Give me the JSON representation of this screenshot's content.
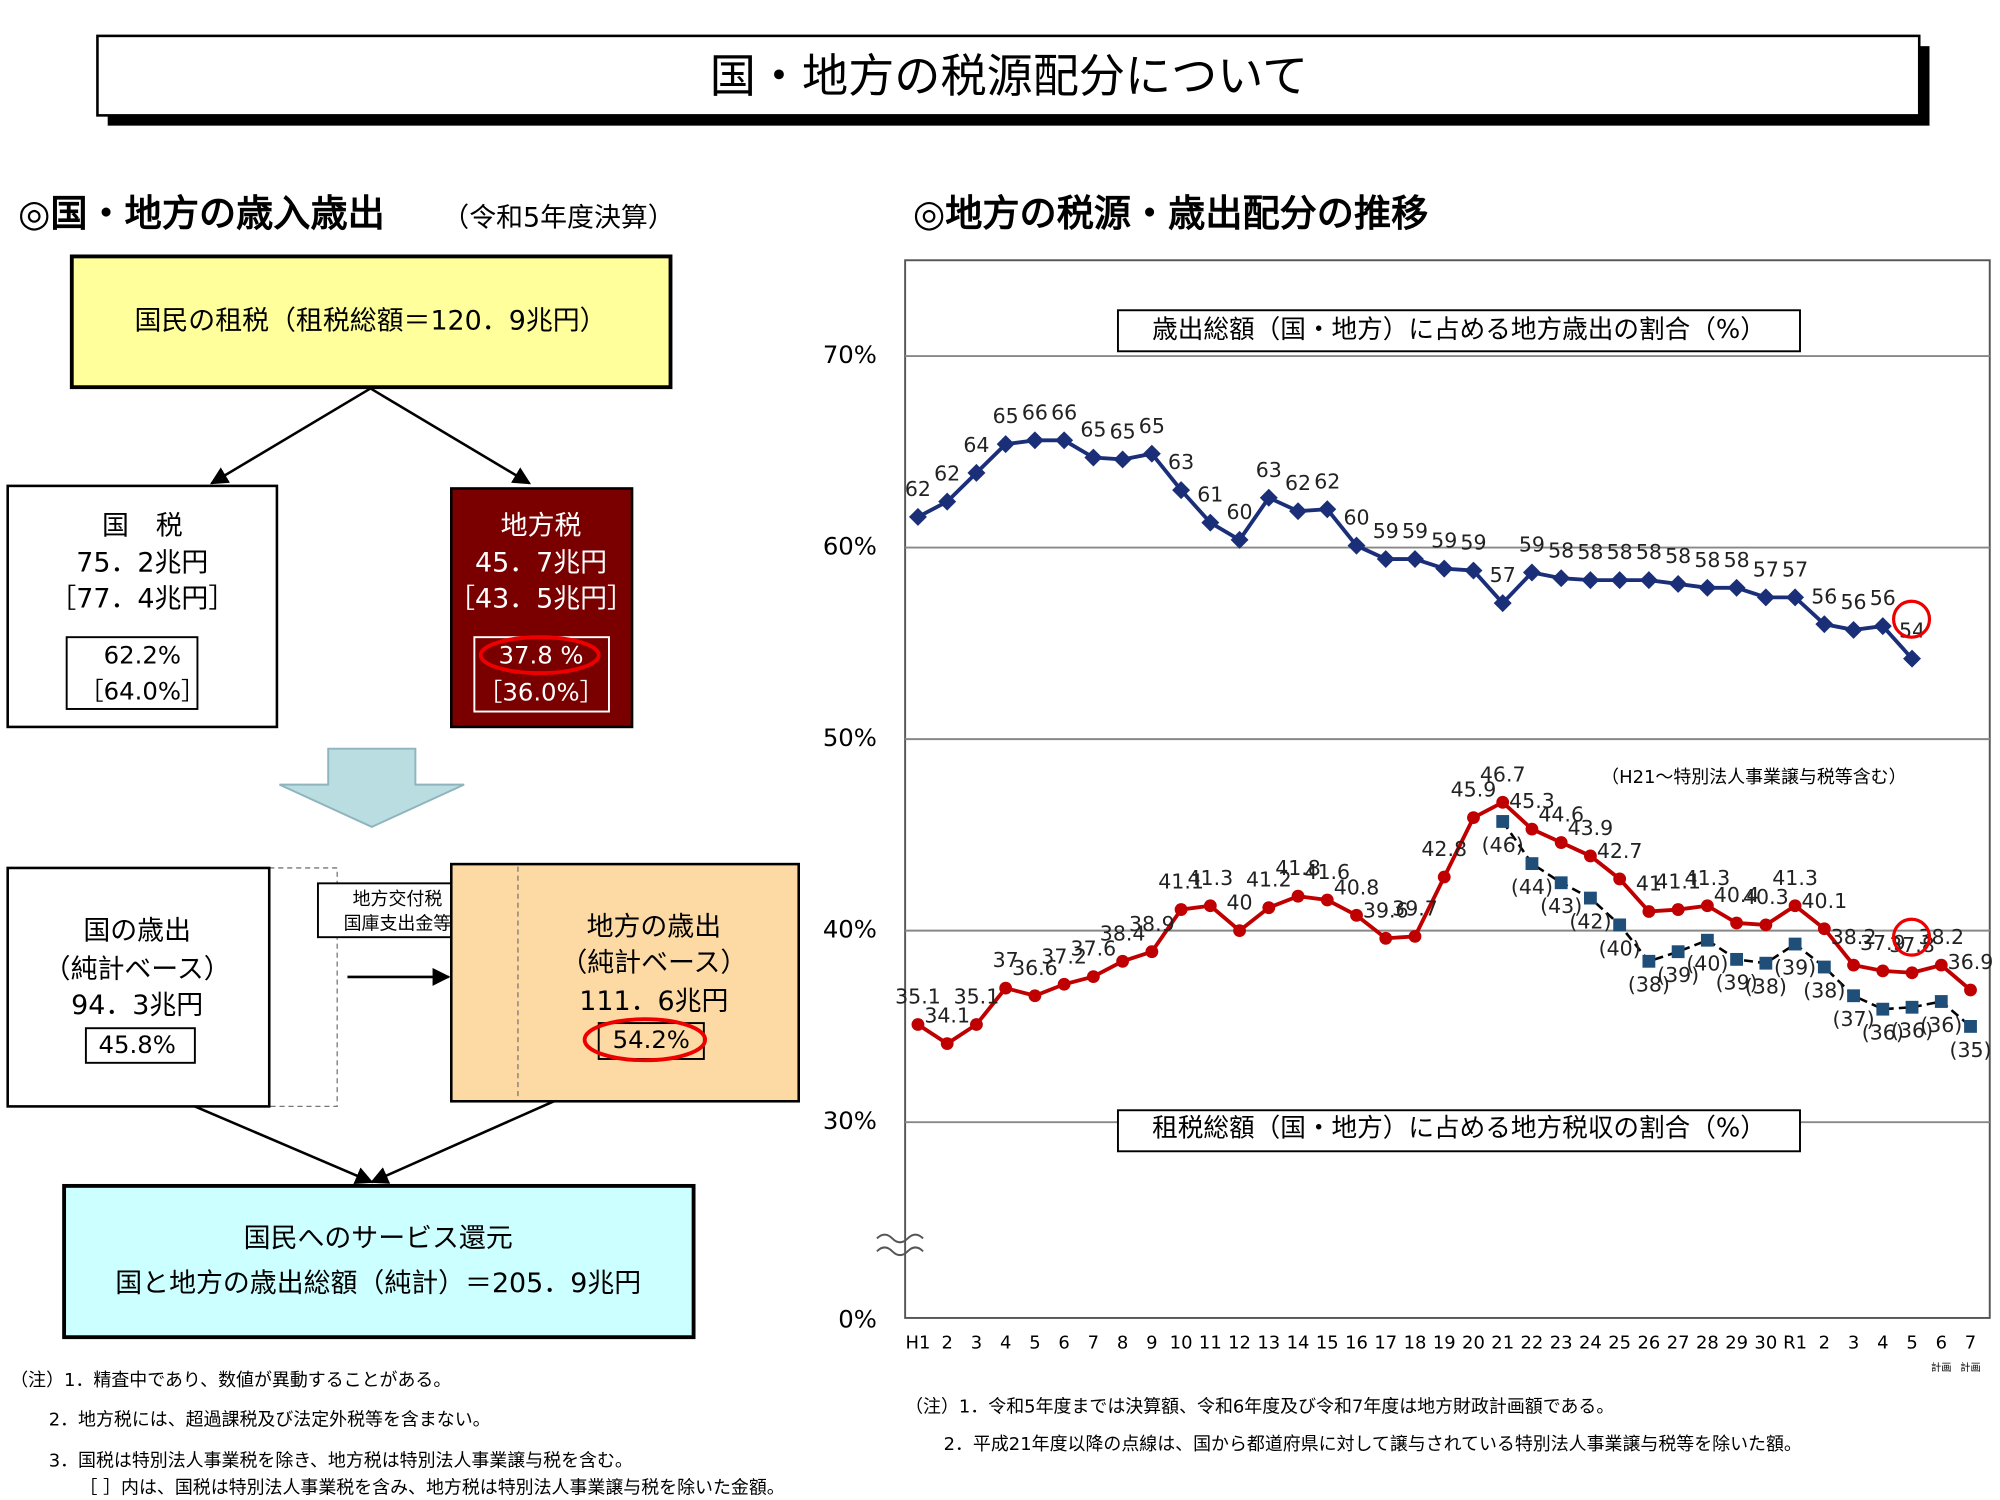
{
  "header": {
    "title": "国・地方の税源配分について"
  },
  "diagram": {
    "title": "◎国・地方の歳入歳出",
    "subtitle": "（令和5年度決算）",
    "total_tax": "国民の租税（租税総額＝120．9兆円）",
    "national_tax": {
      "label": "国　税",
      "amount": "75．2兆円",
      "amount_alt": "［77．4兆円］",
      "share": "62.2%",
      "share_alt": "［64.0%］"
    },
    "local_tax": {
      "label": "地方税",
      "amount": "45．7兆円",
      "amount_alt": "［43．5兆円］",
      "share": "37.8 %",
      "share_alt": "［36.0%］"
    },
    "national_expenditure": {
      "label": "国の歳出",
      "basis": "（純計ベース）",
      "amount": "94．3兆円",
      "share": "45.8%"
    },
    "transfer": [
      "地方交付税",
      "国庫支出金等"
    ],
    "local_expenditure": {
      "label": "地方の歳出",
      "basis": "（純計ベース）",
      "amount": "111．6兆円",
      "share": "54.2%"
    },
    "services": [
      "国民へのサービス還元",
      "国と地方の歳出総額（純計）＝205．9兆円"
    ],
    "notes": [
      "（注）1．精査中であり、数値が異動することがある。",
      "2．地方税には、超過課税及び法定外税等を含まない。",
      "3．国税は特別法人事業税を除き、地方税は特別法人事業譲与税を含む。",
      "［ ］内は、国税は特別法人事業税を含み、地方税は特別法人事業譲与税を除いた金額。"
    ]
  },
  "chart_data": {
    "type": "line",
    "title": "◎地方の税源・歳出配分の推移",
    "categories": [
      "H1",
      "2",
      "3",
      "4",
      "5",
      "6",
      "7",
      "8",
      "9",
      "10",
      "11",
      "12",
      "13",
      "14",
      "15",
      "16",
      "17",
      "18",
      "19",
      "20",
      "21",
      "22",
      "23",
      "24",
      "25",
      "26",
      "27",
      "28",
      "29",
      "30",
      "R1",
      "2",
      "3",
      "4",
      "5",
      "6",
      "7"
    ],
    "category_notes": [
      null,
      null,
      null,
      null,
      null,
      null,
      null,
      null,
      null,
      null,
      null,
      null,
      null,
      null,
      null,
      null,
      null,
      null,
      null,
      null,
      null,
      null,
      null,
      null,
      null,
      null,
      null,
      null,
      null,
      null,
      null,
      null,
      null,
      null,
      null,
      "計画",
      "計画"
    ],
    "ylim": [
      0,
      75
    ],
    "axis_break": [
      0,
      25
    ],
    "yticks": [
      {
        "value": 0,
        "label": "0%"
      },
      {
        "value": 30,
        "label": "30%"
      },
      {
        "value": 40,
        "label": "40%"
      },
      {
        "value": 50,
        "label": "50%"
      },
      {
        "value": 60,
        "label": "60%"
      },
      {
        "value": 70,
        "label": "70%"
      }
    ],
    "grid": true,
    "series": [
      {
        "color": "#1a2f78",
        "marker": "diamond",
        "values": [
          61.6,
          62.4,
          63.9,
          65.4,
          65.6,
          65.6,
          64.7,
          64.6,
          64.9,
          63.0,
          61.3,
          60.4,
          62.6,
          61.9,
          62.0,
          60.1,
          59.4,
          59.4,
          58.9,
          58.8,
          57.1,
          58.7,
          58.4,
          58.3,
          58.3,
          58.3,
          58.1,
          57.9,
          57.9,
          57.4,
          57.4,
          56.0,
          55.7,
          55.9,
          54.2,
          null,
          null
        ],
        "value_labels": [
          "62",
          "62",
          "64",
          "65",
          "66",
          "66",
          "65",
          "65",
          "65",
          "63",
          "61",
          "60",
          "63",
          "62",
          "62",
          "60",
          "59",
          "59",
          "59",
          "59",
          "57",
          "59",
          "58",
          "58",
          "58",
          "58",
          "58",
          "58",
          "58",
          "57",
          "57",
          "56",
          "56",
          "56",
          "54",
          null,
          null
        ]
      },
      {
        "color": "#c00000",
        "marker": "circle",
        "values": [
          35.1,
          34.1,
          35.1,
          37.0,
          36.6,
          37.2,
          37.6,
          38.4,
          38.9,
          41.1,
          41.3,
          40.0,
          41.2,
          41.8,
          41.6,
          40.8,
          39.6,
          39.7,
          42.8,
          45.9,
          46.7,
          45.3,
          44.6,
          43.9,
          42.7,
          41.0,
          41.1,
          41.3,
          40.4,
          40.3,
          41.3,
          40.1,
          38.2,
          37.9,
          37.8,
          38.2,
          36.9
        ]
      },
      {
        "color": "#1f4e79",
        "marker": "square",
        "dashed": true,
        "values": [
          null,
          null,
          null,
          null,
          null,
          null,
          null,
          null,
          null,
          null,
          null,
          null,
          null,
          null,
          null,
          null,
          null,
          null,
          null,
          null,
          45.7,
          43.5,
          42.5,
          41.7,
          40.3,
          38.4,
          38.9,
          39.5,
          38.5,
          38.3,
          39.3,
          38.1,
          36.6,
          35.9,
          36.0,
          36.3,
          35.0
        ],
        "value_labels": [
          null,
          null,
          null,
          null,
          null,
          null,
          null,
          null,
          null,
          null,
          null,
          null,
          null,
          null,
          null,
          null,
          null,
          null,
          null,
          null,
          "(46)",
          "(44)",
          "(43)",
          "(42)",
          "(40)",
          "(38)",
          "(39)",
          "(40)",
          "(39)",
          "(38)",
          "(39)",
          "(38)",
          "(37)",
          "(36)",
          "(36)",
          "(36)",
          "(35)"
        ]
      }
    ],
    "annotations": [
      "歳出総額（国・地方）に占める地方歳出の割合（%）",
      "租税総額（国・地方）に占める地方税収の割合（%）",
      "（H21～特別法人事業譲与税等含む）"
    ],
    "notes": [
      "（注）1．令和5年度までは決算額、令和6年度及び令和7年度は地方財政計画額である。",
      "2．平成21年度以降の点線は、国から都道府県に対して譲与されている特別法人事業譲与税等を除いた額。"
    ]
  }
}
